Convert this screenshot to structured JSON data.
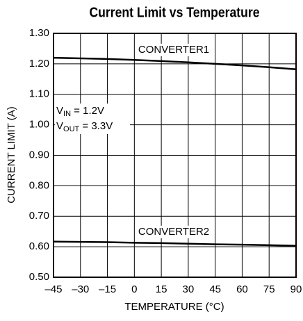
{
  "chart_data": {
    "type": "line",
    "title": "Current Limit vs Temperature",
    "x_label": "TEMPERATURE (°C)",
    "y_label": "CURRENT LIMIT (A)",
    "x": [
      -45,
      -30,
      -15,
      0,
      15,
      30,
      45,
      60,
      75,
      90
    ],
    "series": [
      {
        "name": "CONVERTER1",
        "color": "#000000",
        "values": [
          1.22,
          1.218,
          1.216,
          1.213,
          1.209,
          1.205,
          1.2,
          1.195,
          1.189,
          1.182
        ]
      },
      {
        "name": "CONVERTER2",
        "color": "#000000",
        "values": [
          0.617,
          0.616,
          0.615,
          0.613,
          0.612,
          0.61,
          0.608,
          0.607,
          0.605,
          0.603
        ]
      }
    ],
    "xlim": [
      -45,
      90
    ],
    "xticks": [
      {
        "value": -45,
        "label": "–45"
      },
      {
        "value": -30,
        "label": "–30"
      },
      {
        "value": -15,
        "label": "–15"
      },
      0,
      15,
      30,
      45,
      60,
      75,
      90
    ],
    "ylim": [
      0.5,
      1.3
    ],
    "yticks": [
      {
        "value": 0.5,
        "label": "0.50"
      },
      {
        "value": 0.6,
        "label": "0.60"
      },
      {
        "value": 0.7,
        "label": "0.70"
      },
      {
        "value": 0.8,
        "label": "0.80"
      },
      {
        "value": 0.9,
        "label": "0.90"
      },
      {
        "value": 1.0,
        "label": "1.00"
      },
      {
        "value": 1.1,
        "label": "1.10"
      },
      {
        "value": 1.2,
        "label": "1.20"
      },
      {
        "value": 1.3,
        "label": "1.30"
      }
    ],
    "annotations": [
      {
        "text": "V",
        "sub": "IN",
        "rest": " = 1.2V"
      },
      {
        "text": "V",
        "sub": "OUT",
        "rest": " = 3.3V"
      }
    ],
    "grid": true
  }
}
